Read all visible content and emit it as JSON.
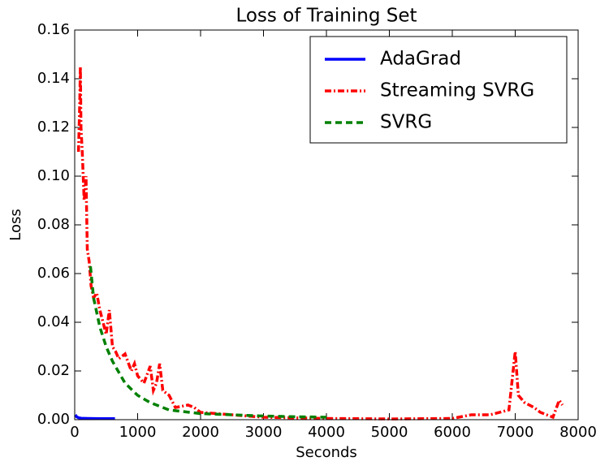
{
  "chart_data": {
    "type": "line",
    "title": "Loss of Training Set",
    "x_label": "Seconds",
    "y_label": "Loss",
    "xlim": [
      0,
      8000
    ],
    "ylim": [
      0,
      0.16
    ],
    "xticks": [
      0,
      1000,
      2000,
      3000,
      4000,
      5000,
      6000,
      7000,
      8000
    ],
    "yticks": [
      {
        "value": 0,
        "label": "0.00"
      },
      {
        "value": 0.02,
        "label": "0.02"
      },
      {
        "value": 0.04,
        "label": "0.04"
      },
      {
        "value": 0.06,
        "label": "0.06"
      },
      {
        "value": 0.08,
        "label": "0.08"
      },
      {
        "value": 0.1,
        "label": "0.10"
      },
      {
        "value": 0.12,
        "label": "0.12"
      },
      {
        "value": 0.14,
        "label": "0.14"
      },
      {
        "value": 0.16,
        "label": "0.16"
      }
    ],
    "grid": false,
    "legend": "upper right",
    "series": [
      {
        "name": "AdaGrad",
        "color": "#0000ff",
        "linestyle": "solid",
        "x": [
          10,
          30,
          60,
          100,
          200,
          400,
          640
        ],
        "values": [
          0.002,
          0.0012,
          0.0008,
          0.0006,
          0.0005,
          0.0004,
          0.0004
        ]
      },
      {
        "name": "Streaming SVRG",
        "color": "#ff0000",
        "linestyle": "dashdot",
        "x": [
          60,
          80,
          90,
          100,
          120,
          150,
          180,
          200,
          230,
          260,
          300,
          350,
          400,
          450,
          500,
          550,
          600,
          650,
          700,
          800,
          900,
          950,
          1000,
          1100,
          1200,
          1250,
          1300,
          1350,
          1400,
          1500,
          1600,
          1800,
          1900,
          2000,
          2500,
          3000,
          4000,
          5000,
          6000,
          6300,
          6600,
          6900,
          7000,
          7050,
          7150,
          7300,
          7400,
          7600,
          7700,
          7750
        ],
        "values": [
          0.11,
          0.13,
          0.145,
          0.12,
          0.11,
          0.09,
          0.1,
          0.07,
          0.065,
          0.055,
          0.05,
          0.052,
          0.045,
          0.04,
          0.035,
          0.045,
          0.03,
          0.028,
          0.025,
          0.027,
          0.02,
          0.023,
          0.018,
          0.015,
          0.022,
          0.012,
          0.015,
          0.023,
          0.012,
          0.01,
          0.005,
          0.006,
          0.005,
          0.003,
          0.002,
          0.001,
          0.0005,
          0.0003,
          0.0005,
          0.002,
          0.002,
          0.004,
          0.028,
          0.01,
          0.007,
          0.005,
          0.003,
          0.001,
          0.008,
          0.006
        ]
      },
      {
        "name": "SVRG",
        "color": "#008000",
        "linestyle": "dashed",
        "x": [
          250,
          300,
          400,
          500,
          600,
          800,
          1000,
          1200,
          1500,
          2000,
          2500,
          3000,
          3500,
          4000
        ],
        "values": [
          0.063,
          0.05,
          0.038,
          0.03,
          0.024,
          0.015,
          0.01,
          0.007,
          0.004,
          0.0025,
          0.002,
          0.0015,
          0.0012,
          0.001
        ]
      }
    ]
  }
}
